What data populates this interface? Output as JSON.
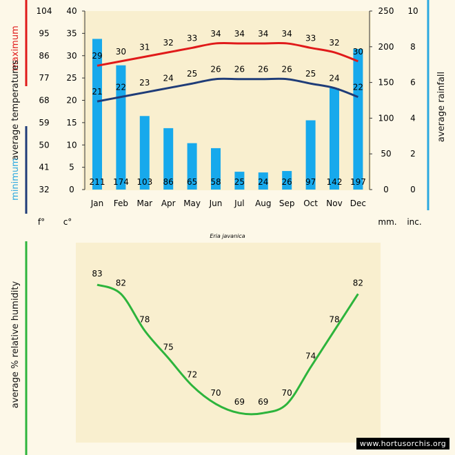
{
  "chart_data": [
    {
      "type": "bar+line",
      "title": "Eria javanica",
      "categories": [
        "Jan",
        "Feb",
        "Mar",
        "Apr",
        "May",
        "Jun",
        "Jul",
        "Aug",
        "Sep",
        "Oct",
        "Nov",
        "Dec"
      ],
      "rainfall_mm": [
        211,
        174,
        103,
        86,
        65,
        58,
        25,
        24,
        26,
        97,
        142,
        197
      ],
      "max_temp_c": [
        29,
        30,
        31,
        32,
        33,
        34,
        34,
        34,
        34,
        33,
        32,
        30
      ],
      "min_temp_c": [
        21,
        22,
        23,
        24,
        25,
        26,
        26,
        26,
        26,
        25,
        24,
        22
      ],
      "left_axis_f": {
        "label": "f°",
        "ticks": [
          104,
          95,
          86,
          77,
          68,
          59,
          50,
          41,
          32
        ]
      },
      "left_axis_c": {
        "label": "c°",
        "ticks": [
          40,
          35,
          30,
          25,
          20,
          15,
          10,
          5,
          0
        ],
        "range": [
          0,
          40
        ]
      },
      "right_axis_mm": {
        "label": "mm.",
        "ticks": [
          250,
          200,
          150,
          100,
          50,
          0
        ],
        "range": [
          0,
          250
        ]
      },
      "right_axis_in": {
        "label": "inc.",
        "ticks": [
          10,
          8,
          6,
          4,
          2,
          0
        ]
      },
      "ylabel_left": {
        "minimum": "minimum",
        "average_temperatures": "average  temperatures",
        "maximum": "maximum"
      },
      "ylabel_right": "average rainfall",
      "colors": {
        "bars": "#17a9ec",
        "max_line": "#e01a1a",
        "min_line": "#1f3c78",
        "rain_axis_bar": "#2aa8e0"
      }
    },
    {
      "type": "line",
      "series": [
        {
          "name": "humidity",
          "values": [
            83,
            82,
            78,
            75,
            72,
            70,
            69,
            69,
            70,
            74,
            78,
            82
          ]
        }
      ],
      "ylabel": "average %  relative humidity",
      "colors": {
        "line": "#2db43c"
      }
    }
  ],
  "watermark": "www.hortusorchis.org"
}
